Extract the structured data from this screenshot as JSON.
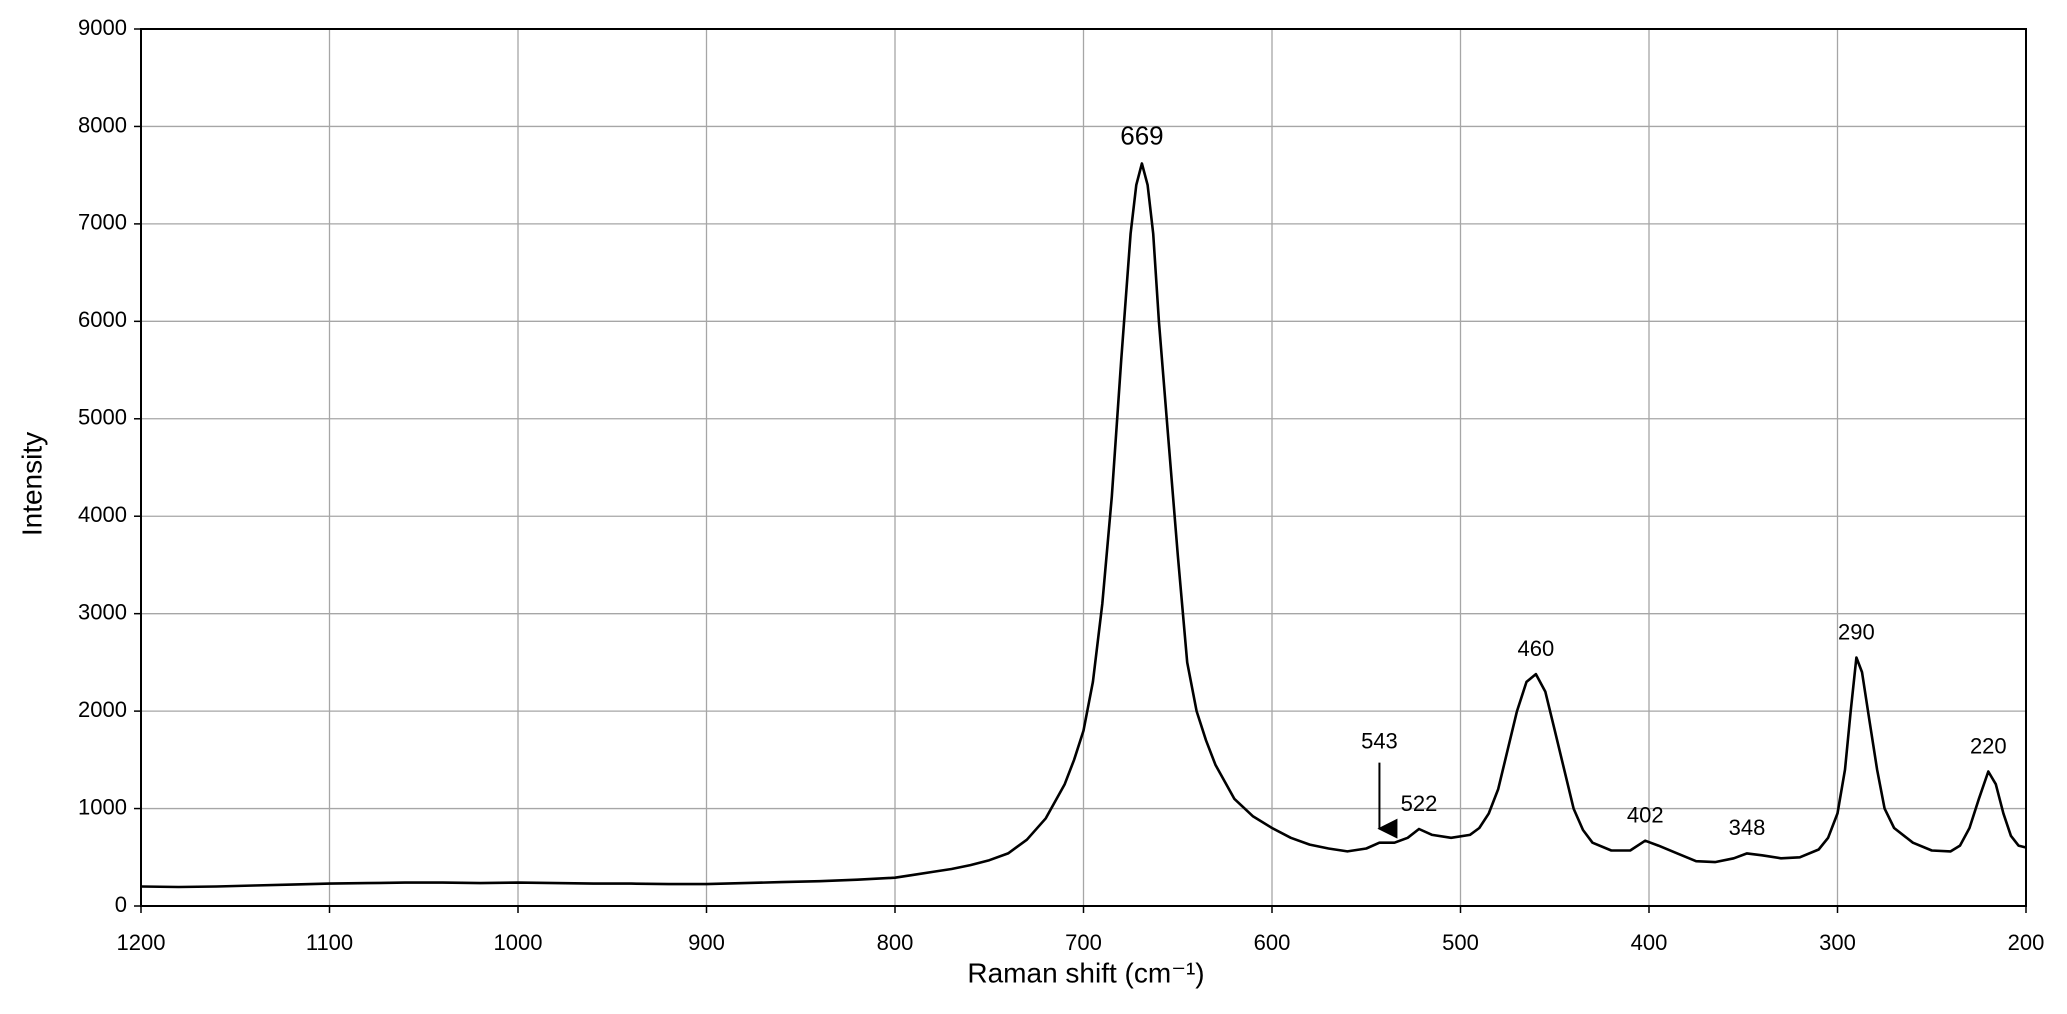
{
  "chart_data": {
    "type": "line",
    "x_label": "Raman shift (cm⁻¹)",
    "y_label": "Intensity",
    "xlim": [
      1200,
      200
    ],
    "xticks": [
      1200,
      1100,
      1000,
      900,
      800,
      700,
      600,
      500,
      400,
      300,
      200
    ],
    "ylim": [
      0,
      9000
    ],
    "yticks": [
      0,
      1000,
      2000,
      3000,
      4000,
      5000,
      6000,
      7000,
      8000,
      9000
    ],
    "grid": true,
    "series": [
      {
        "color": "#000000",
        "x": [
          1200,
          1180,
          1160,
          1140,
          1120,
          1100,
          1080,
          1060,
          1040,
          1020,
          1000,
          980,
          960,
          940,
          920,
          900,
          880,
          860,
          840,
          820,
          800,
          790,
          780,
          770,
          760,
          750,
          740,
          730,
          720,
          710,
          705,
          700,
          695,
          690,
          685,
          680,
          675,
          672,
          669,
          666,
          663,
          660,
          655,
          650,
          645,
          640,
          635,
          630,
          620,
          610,
          600,
          590,
          580,
          570,
          560,
          550,
          543,
          535,
          528,
          522,
          515,
          505,
          495,
          490,
          485,
          480,
          475,
          470,
          465,
          460,
          455,
          450,
          445,
          440,
          435,
          430,
          420,
          410,
          402,
          395,
          385,
          375,
          365,
          355,
          348,
          340,
          330,
          320,
          310,
          305,
          300,
          296,
          293,
          290,
          287,
          283,
          279,
          275,
          270,
          260,
          250,
          240,
          235,
          230,
          225,
          220,
          216,
          212,
          208,
          204,
          200
        ],
        "values": [
          200,
          195,
          200,
          210,
          220,
          230,
          235,
          240,
          240,
          235,
          240,
          235,
          230,
          230,
          225,
          225,
          235,
          245,
          255,
          270,
          290,
          320,
          350,
          380,
          420,
          470,
          540,
          680,
          900,
          1250,
          1500,
          1800,
          2300,
          3100,
          4200,
          5600,
          6900,
          7400,
          7620,
          7400,
          6900,
          6000,
          4800,
          3600,
          2500,
          2000,
          1700,
          1450,
          1100,
          920,
          800,
          700,
          630,
          590,
          560,
          590,
          650,
          650,
          700,
          790,
          730,
          700,
          730,
          800,
          950,
          1200,
          1600,
          2000,
          2300,
          2380,
          2200,
          1800,
          1400,
          1000,
          780,
          650,
          570,
          570,
          670,
          620,
          540,
          460,
          450,
          490,
          540,
          520,
          490,
          500,
          580,
          700,
          950,
          1400,
          2000,
          2550,
          2400,
          1900,
          1400,
          1000,
          800,
          650,
          570,
          560,
          620,
          800,
          1100,
          1380,
          1250,
          950,
          720,
          620,
          600
        ]
      }
    ],
    "annotations": [
      {
        "text": "669",
        "x": 669,
        "y": 7620
      },
      {
        "text": "543",
        "x": 543,
        "y": 650,
        "arrow": true
      },
      {
        "text": "522",
        "x": 522,
        "y": 790
      },
      {
        "text": "460",
        "x": 460,
        "y": 2380
      },
      {
        "text": "402",
        "x": 402,
        "y": 670
      },
      {
        "text": "348",
        "x": 348,
        "y": 540
      },
      {
        "text": "290",
        "x": 290,
        "y": 2550
      },
      {
        "text": "220",
        "x": 220,
        "y": 1380
      }
    ]
  }
}
